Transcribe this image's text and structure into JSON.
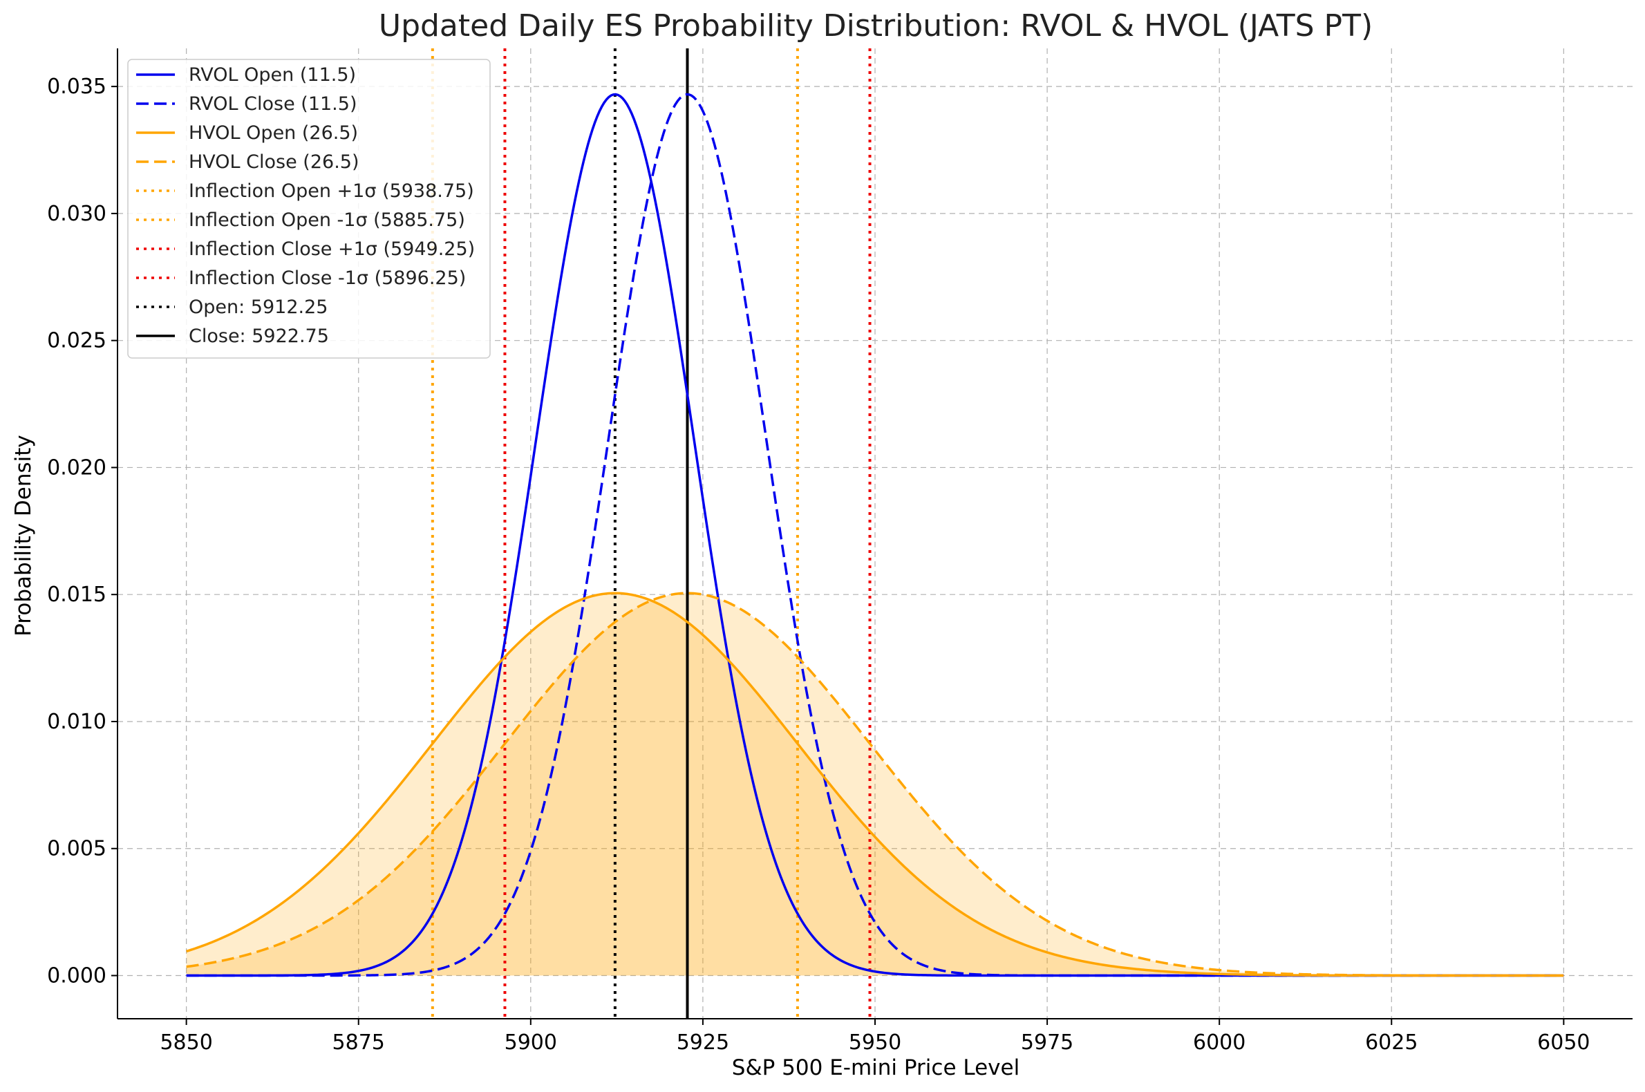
{
  "chart_data": {
    "type": "line",
    "title": "Updated Daily ES Probability Distribution: RVOL & HVOL (JATS PT)",
    "xlabel": "S&P 500 E-mini Price Level",
    "ylabel": "Probability Density",
    "xlim": [
      5840,
      6060
    ],
    "ylim": [
      -0.0017,
      0.0365
    ],
    "x_ticks": [
      5850,
      5875,
      5900,
      5925,
      5950,
      5975,
      6000,
      6025,
      6050
    ],
    "x_tick_labels": [
      "5850",
      "5875",
      "5900",
      "5925",
      "5950",
      "5975",
      "6000",
      "6025",
      "6050"
    ],
    "y_ticks": [
      0.0,
      0.005,
      0.01,
      0.015,
      0.02,
      0.025,
      0.03,
      0.035
    ],
    "y_tick_labels": [
      "0.000",
      "0.005",
      "0.010",
      "0.015",
      "0.020",
      "0.025",
      "0.030",
      "0.035"
    ],
    "grid": true,
    "legend_position": "upper-left",
    "x_range": [
      5850,
      6050
    ],
    "series": [
      {
        "name": "RVOL Open (11.5)",
        "kind": "normal",
        "mean": 5912.25,
        "sd": 11.5,
        "color": "#0000ee",
        "style": "solid",
        "fill": false
      },
      {
        "name": "RVOL Close (11.5)",
        "kind": "normal",
        "mean": 5922.75,
        "sd": 11.5,
        "color": "#0000ee",
        "style": "dashed",
        "fill": false
      },
      {
        "name": "HVOL Open (26.5)",
        "kind": "normal",
        "mean": 5912.25,
        "sd": 26.5,
        "color": "#ffa500",
        "style": "solid",
        "fill": true
      },
      {
        "name": "HVOL Close (26.5)",
        "kind": "normal",
        "mean": 5922.75,
        "sd": 26.5,
        "color": "#ffa500",
        "style": "dashed",
        "fill": true
      }
    ],
    "vlines": [
      {
        "name": "Inflection Open +1σ (5938.75)",
        "x": 5938.75,
        "color": "#ffa500",
        "style": "dotted"
      },
      {
        "name": "Inflection Open -1σ (5885.75)",
        "x": 5885.75,
        "color": "#ffa500",
        "style": "dotted"
      },
      {
        "name": "Inflection Close +1σ (5949.25)",
        "x": 5949.25,
        "color": "#ee0000",
        "style": "dotted"
      },
      {
        "name": "Inflection Close -1σ (5896.25)",
        "x": 5896.25,
        "color": "#ee0000",
        "style": "dotted"
      },
      {
        "name": "Open: 5912.25",
        "x": 5912.25,
        "color": "#000000",
        "style": "dotted"
      },
      {
        "name": "Close: 5922.75",
        "x": 5922.75,
        "color": "#000000",
        "style": "solid"
      }
    ]
  }
}
